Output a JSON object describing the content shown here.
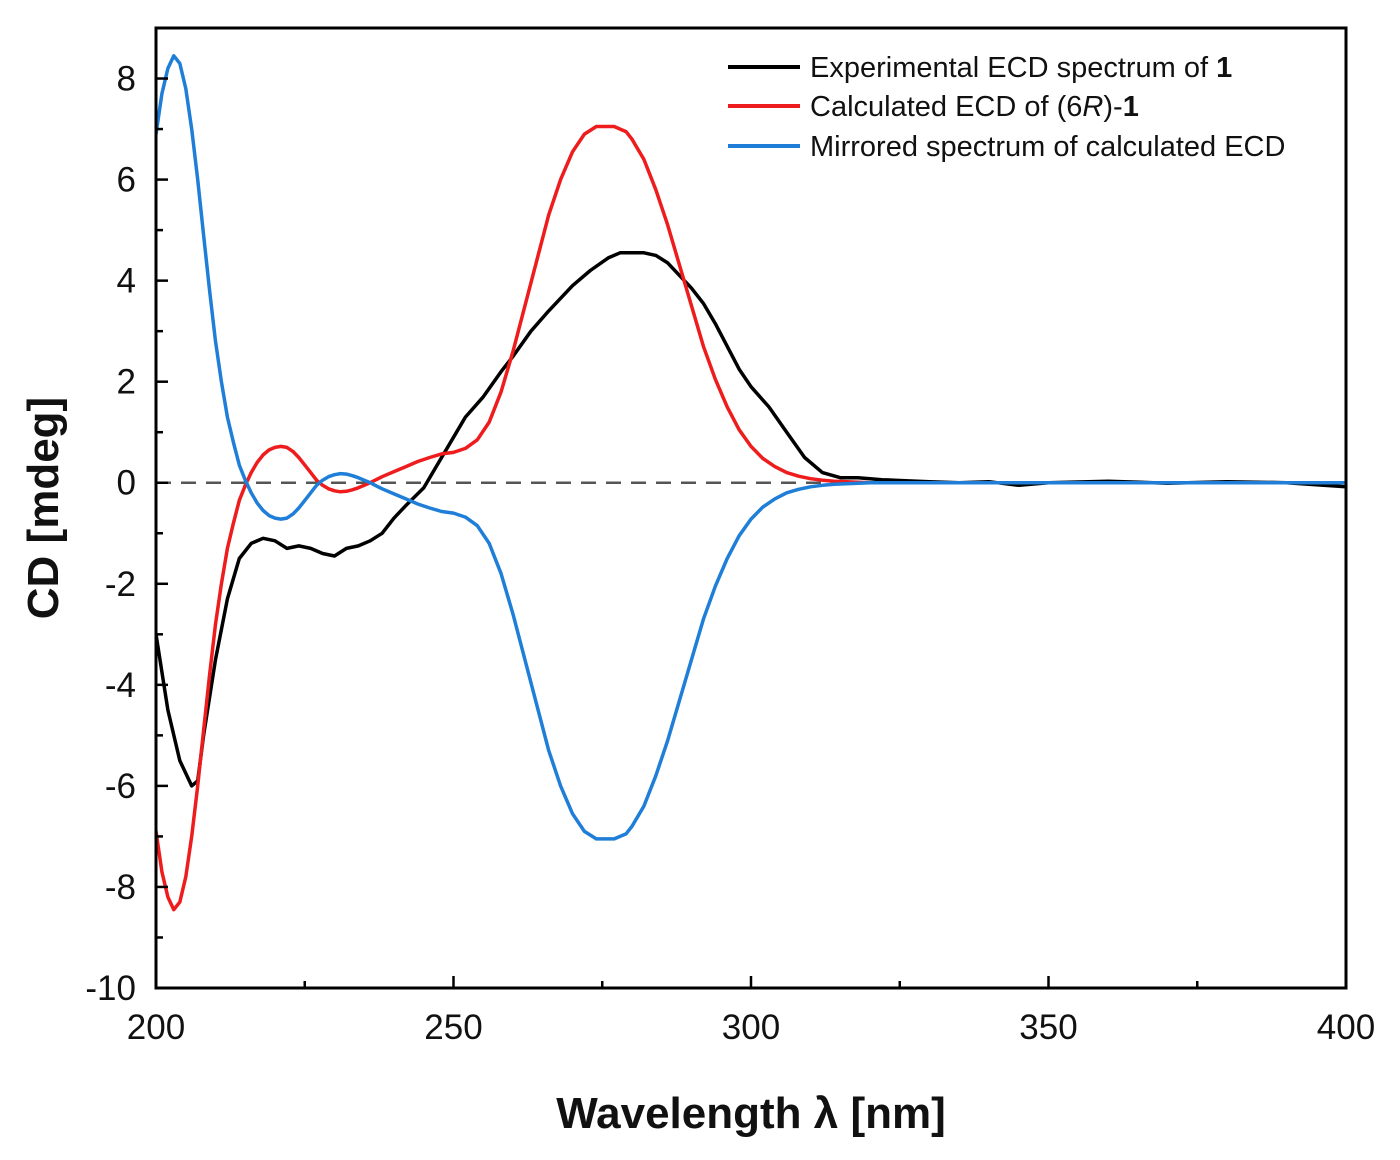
{
  "chart_data": {
    "type": "line",
    "xlabel": "Wavelength λ [nm]",
    "ylabel": "CD [mdeg]",
    "xlim": [
      200,
      400
    ],
    "ylim": [
      -10,
      9
    ],
    "x_ticks": [
      200,
      250,
      300,
      350,
      400
    ],
    "y_ticks": [
      -10,
      -8,
      -6,
      -4,
      -2,
      0,
      2,
      4,
      6,
      8
    ],
    "zero_line": {
      "y": 0,
      "style": "dashed",
      "color": "#555555"
    },
    "grid": false,
    "legend_position": "top-right",
    "legend_parts": [
      [
        {
          "text": "Experimental ECD spectrum of ",
          "style": "normal"
        },
        {
          "text": "1",
          "style": "bold"
        }
      ],
      [
        {
          "text": "Calculated ECD of (6",
          "style": "normal"
        },
        {
          "text": "R",
          "style": "italic"
        },
        {
          "text": ")-",
          "style": "normal"
        },
        {
          "text": "1",
          "style": "bold"
        }
      ],
      [
        {
          "text": "Mirrored spectrum of calculated ECD",
          "style": "normal"
        }
      ]
    ],
    "series": [
      {
        "name": "Experimental ECD spectrum of 1",
        "color": "#000000",
        "x": [
          200,
          202,
          204,
          206,
          207,
          208,
          210,
          212,
          214,
          216,
          218,
          220,
          222,
          224,
          226,
          228,
          230,
          232,
          234,
          236,
          238,
          240,
          242,
          245,
          248,
          250,
          252,
          255,
          258,
          260,
          263,
          266,
          270,
          273,
          276,
          278,
          280,
          282,
          284,
          286,
          288,
          290,
          292,
          294,
          296,
          298,
          300,
          303,
          306,
          309,
          312,
          315,
          318,
          322,
          326,
          330,
          335,
          340,
          345,
          350,
          360,
          370,
          380,
          390,
          400
        ],
        "y": [
          -3.0,
          -4.5,
          -5.5,
          -6.0,
          -5.9,
          -5.0,
          -3.5,
          -2.3,
          -1.5,
          -1.2,
          -1.1,
          -1.15,
          -1.3,
          -1.25,
          -1.3,
          -1.4,
          -1.45,
          -1.3,
          -1.25,
          -1.15,
          -1.0,
          -0.7,
          -0.45,
          -0.1,
          0.5,
          0.9,
          1.3,
          1.7,
          2.2,
          2.5,
          3.0,
          3.4,
          3.9,
          4.2,
          4.45,
          4.55,
          4.55,
          4.55,
          4.5,
          4.35,
          4.1,
          3.85,
          3.55,
          3.15,
          2.7,
          2.25,
          1.9,
          1.5,
          1.0,
          0.5,
          0.2,
          0.1,
          0.1,
          0.06,
          0.04,
          0.02,
          0.0,
          0.02,
          -0.05,
          0.0,
          0.03,
          -0.01,
          0.02,
          0.0,
          -0.08
        ]
      },
      {
        "name": "Calculated ECD of (6R)-1",
        "color": "#ee1c1c",
        "x": [
          200,
          201,
          202,
          203,
          204,
          205,
          206,
          207,
          208,
          209,
          210,
          211,
          212,
          213,
          214,
          215,
          216,
          217,
          218,
          219,
          220,
          221,
          222,
          223,
          224,
          225,
          226,
          227,
          228,
          229,
          230,
          231,
          232,
          233,
          234,
          235,
          236,
          237,
          238,
          240,
          242,
          244,
          246,
          248,
          250,
          252,
          254,
          256,
          258,
          260,
          262,
          264,
          266,
          268,
          270,
          272,
          274,
          276,
          277,
          278,
          279,
          280,
          282,
          284,
          286,
          288,
          290,
          292,
          294,
          296,
          298,
          300,
          302,
          304,
          306,
          308,
          310,
          312,
          314,
          316,
          318,
          320,
          325,
          330,
          340,
          350,
          360,
          370,
          380,
          390,
          400
        ],
        "y": [
          -6.9,
          -7.7,
          -8.2,
          -8.45,
          -8.3,
          -7.8,
          -7.0,
          -6.0,
          -4.9,
          -3.8,
          -2.8,
          -2.0,
          -1.3,
          -0.8,
          -0.35,
          -0.05,
          0.2,
          0.4,
          0.55,
          0.65,
          0.7,
          0.72,
          0.7,
          0.62,
          0.5,
          0.35,
          0.2,
          0.05,
          -0.05,
          -0.12,
          -0.16,
          -0.18,
          -0.17,
          -0.14,
          -0.1,
          -0.05,
          0.0,
          0.06,
          0.12,
          0.22,
          0.32,
          0.42,
          0.5,
          0.57,
          0.6,
          0.68,
          0.85,
          1.2,
          1.8,
          2.6,
          3.5,
          4.4,
          5.3,
          6.0,
          6.55,
          6.9,
          7.05,
          7.05,
          7.05,
          7.0,
          6.95,
          6.8,
          6.4,
          5.8,
          5.1,
          4.3,
          3.5,
          2.7,
          2.05,
          1.5,
          1.05,
          0.72,
          0.48,
          0.32,
          0.2,
          0.13,
          0.08,
          0.05,
          0.03,
          0.02,
          0.01,
          0.0,
          0.0,
          0.0,
          0.0,
          0.0,
          0.0,
          0.0,
          0.0,
          0.0,
          0.0
        ]
      },
      {
        "name": "Mirrored spectrum of calculated ECD",
        "color": "#1f7fd8",
        "x": [
          200,
          201,
          202,
          203,
          204,
          205,
          206,
          207,
          208,
          209,
          210,
          211,
          212,
          213,
          214,
          215,
          216,
          217,
          218,
          219,
          220,
          221,
          222,
          223,
          224,
          225,
          226,
          227,
          228,
          229,
          230,
          231,
          232,
          233,
          234,
          235,
          236,
          237,
          238,
          240,
          242,
          244,
          246,
          248,
          250,
          252,
          254,
          256,
          258,
          260,
          262,
          264,
          266,
          268,
          270,
          272,
          274,
          276,
          277,
          278,
          279,
          280,
          282,
          284,
          286,
          288,
          290,
          292,
          294,
          296,
          298,
          300,
          302,
          304,
          306,
          308,
          310,
          312,
          314,
          316,
          318,
          320,
          325,
          330,
          340,
          350,
          360,
          370,
          380,
          390,
          400
        ],
        "y": [
          6.9,
          7.7,
          8.2,
          8.45,
          8.3,
          7.8,
          7.0,
          6.0,
          4.9,
          3.8,
          2.8,
          2.0,
          1.3,
          0.8,
          0.35,
          0.05,
          -0.2,
          -0.4,
          -0.55,
          -0.65,
          -0.7,
          -0.72,
          -0.7,
          -0.62,
          -0.5,
          -0.35,
          -0.2,
          -0.05,
          0.05,
          0.12,
          0.16,
          0.18,
          0.17,
          0.14,
          0.1,
          0.05,
          0.0,
          -0.06,
          -0.12,
          -0.22,
          -0.32,
          -0.42,
          -0.5,
          -0.57,
          -0.6,
          -0.68,
          -0.85,
          -1.2,
          -1.8,
          -2.6,
          -3.5,
          -4.4,
          -5.3,
          -6.0,
          -6.55,
          -6.9,
          -7.05,
          -7.05,
          -7.05,
          -7.0,
          -6.95,
          -6.8,
          -6.4,
          -5.8,
          -5.1,
          -4.3,
          -3.5,
          -2.7,
          -2.05,
          -1.5,
          -1.05,
          -0.72,
          -0.48,
          -0.32,
          -0.2,
          -0.13,
          -0.08,
          -0.05,
          -0.03,
          -0.02,
          -0.01,
          0.0,
          0.0,
          0.0,
          0.0,
          0.0,
          0.0,
          0.0,
          0.0,
          0.0,
          0.0
        ]
      }
    ]
  }
}
